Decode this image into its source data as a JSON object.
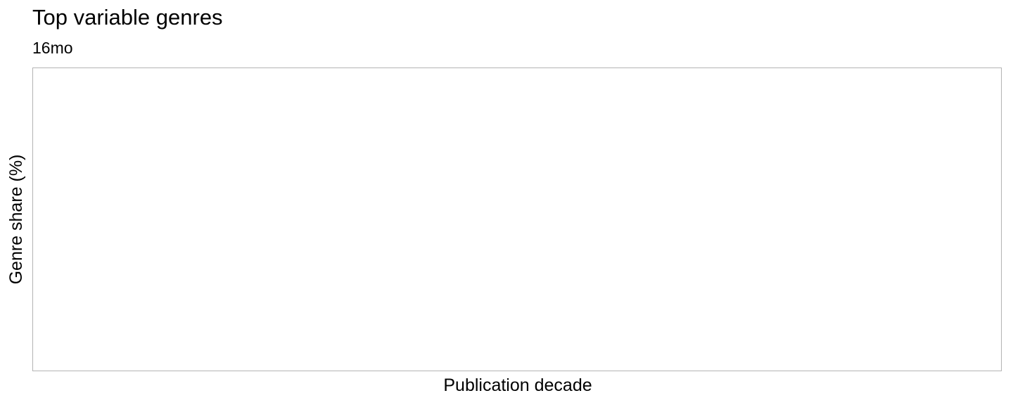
{
  "chart_data": {
    "type": "line",
    "title": "Top variable genres",
    "subtitle": "16mo",
    "xlabel": "Publication decade",
    "ylabel": "Genre share (%)",
    "categories": [],
    "series": [],
    "grid": false,
    "legend": "none",
    "panel_border_color": "#b3b3b3"
  }
}
